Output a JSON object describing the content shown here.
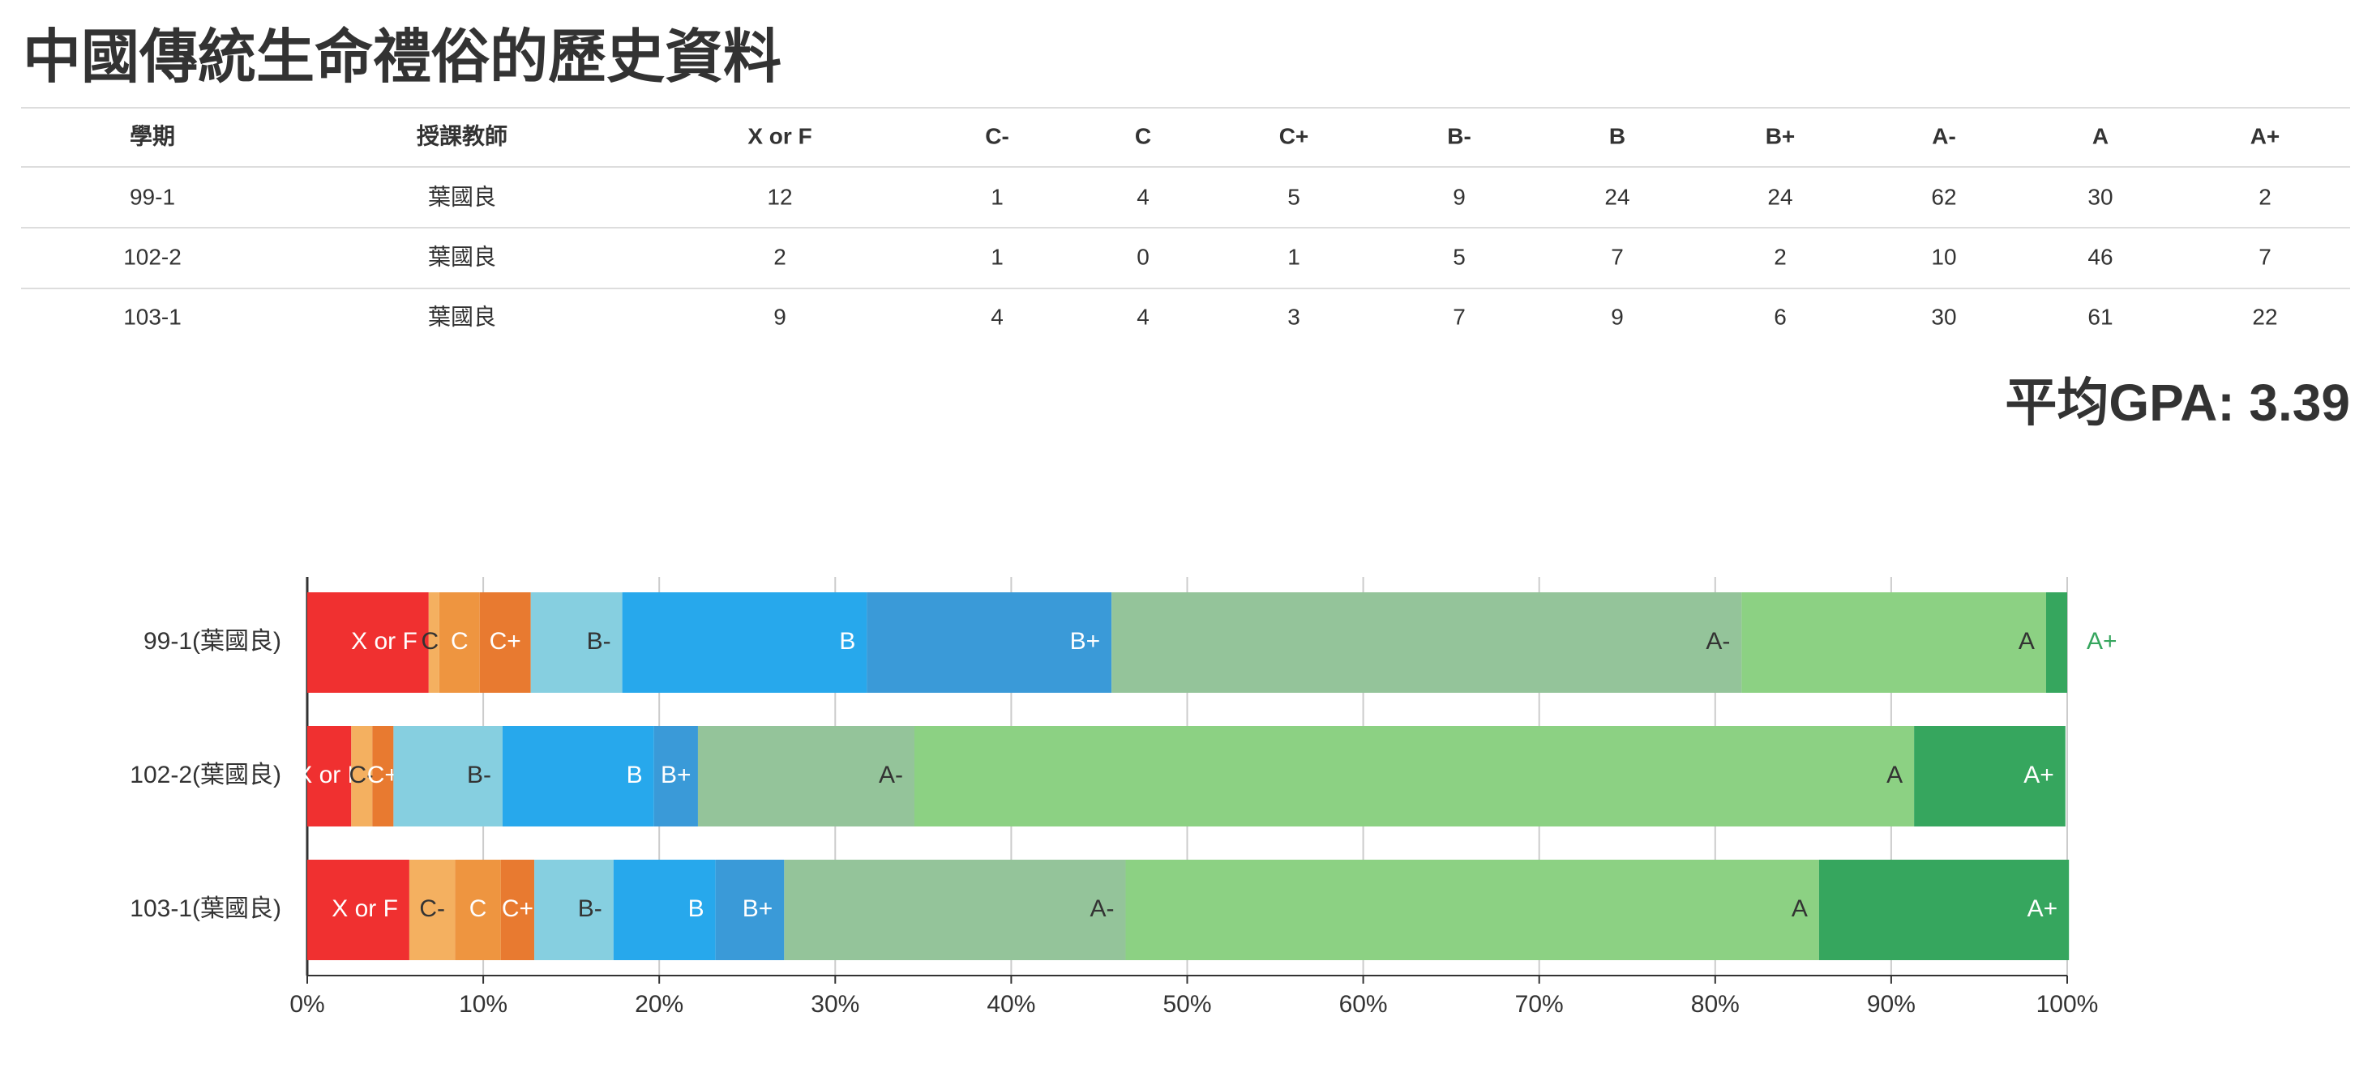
{
  "title": "中國傳統生命禮俗的歷史資料",
  "table": {
    "columns": [
      "學期",
      "授課教師",
      "X or F",
      "C-",
      "C",
      "C+",
      "B-",
      "B",
      "B+",
      "A-",
      "A",
      "A+"
    ],
    "rows": [
      [
        "99-1",
        "葉國良",
        12,
        1,
        4,
        5,
        9,
        24,
        24,
        62,
        30,
        2
      ],
      [
        "102-2",
        "葉國良",
        2,
        1,
        0,
        1,
        5,
        7,
        2,
        10,
        46,
        7
      ],
      [
        "103-1",
        "葉國良",
        9,
        4,
        4,
        3,
        7,
        9,
        6,
        30,
        61,
        22
      ]
    ]
  },
  "gpa": "平均GPA: 3.39",
  "chart_data": {
    "type": "bar",
    "orientation": "horizontal",
    "stacked": true,
    "categories": [
      "99-1(葉國良)",
      "102-2(葉國良)",
      "103-1(葉國良)"
    ],
    "series": [
      {
        "name": "X or F",
        "color": "#f03030",
        "values": [
          6.9,
          2.5,
          5.8
        ]
      },
      {
        "name": "C-",
        "color": "#f4b060",
        "values": [
          0.6,
          1.2,
          2.6
        ]
      },
      {
        "name": "C",
        "color": "#ee9540",
        "values": [
          2.3,
          0,
          2.6
        ]
      },
      {
        "name": "C+",
        "color": "#e87a30",
        "values": [
          2.9,
          1.2,
          1.9
        ]
      },
      {
        "name": "B-",
        "color": "#86cfe0",
        "values": [
          5.2,
          6.2,
          4.5
        ]
      },
      {
        "name": "B",
        "color": "#27a8ec",
        "values": [
          13.9,
          8.6,
          5.8
        ]
      },
      {
        "name": "B+",
        "color": "#3a9ad8",
        "values": [
          13.9,
          2.5,
          3.9
        ]
      },
      {
        "name": "A-",
        "color": "#94c49a",
        "values": [
          35.8,
          12.3,
          19.4
        ]
      },
      {
        "name": "A",
        "color": "#8cd183",
        "values": [
          17.3,
          56.8,
          39.4
        ]
      },
      {
        "name": "A+",
        "color": "#36a65e",
        "values": [
          1.2,
          8.6,
          14.2
        ]
      }
    ],
    "xlim": [
      0,
      100
    ],
    "xticks": [
      {
        "value": 0,
        "label": "0%"
      },
      {
        "value": 10,
        "label": "10%"
      },
      {
        "value": 20,
        "label": "20%"
      },
      {
        "value": 30,
        "label": "30%"
      },
      {
        "value": 40,
        "label": "40%"
      },
      {
        "value": 50,
        "label": "50%"
      },
      {
        "value": 60,
        "label": "60%"
      },
      {
        "value": 70,
        "label": "70%"
      },
      {
        "value": 80,
        "label": "80%"
      },
      {
        "value": 90,
        "label": "90%"
      },
      {
        "value": 100,
        "label": "100%"
      }
    ],
    "grid": true
  }
}
